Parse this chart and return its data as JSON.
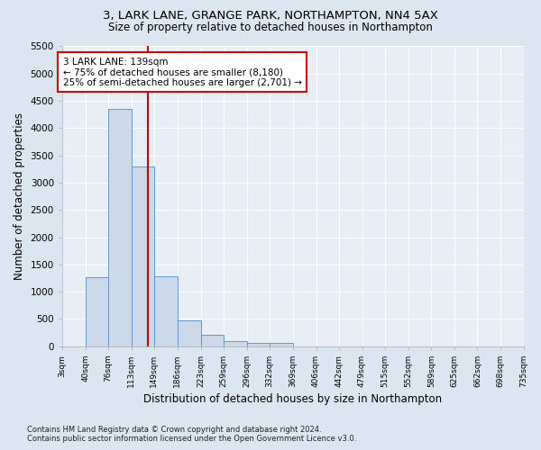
{
  "title1": "3, LARK LANE, GRANGE PARK, NORTHAMPTON, NN4 5AX",
  "title2": "Size of property relative to detached houses in Northampton",
  "xlabel": "Distribution of detached houses by size in Northampton",
  "ylabel": "Number of detached properties",
  "footnote": "Contains HM Land Registry data © Crown copyright and database right 2024.\nContains public sector information licensed under the Open Government Licence v3.0.",
  "bin_edges": [
    3,
    40,
    76,
    113,
    149,
    186,
    223,
    259,
    296,
    332,
    369,
    406,
    442,
    479,
    515,
    552,
    589,
    625,
    662,
    698,
    735
  ],
  "bar_values": [
    0,
    1260,
    4350,
    3300,
    1280,
    480,
    215,
    90,
    60,
    55,
    0,
    0,
    0,
    0,
    0,
    0,
    0,
    0,
    0,
    0
  ],
  "bar_color": "#ccd9ea",
  "bar_edge_color": "#5b9bd5",
  "vline_x": 139,
  "vline_color": "#cc0000",
  "annotation_title": "3 LARK LANE: 139sqm",
  "annotation_line1": "← 75% of detached houses are smaller (8,180)",
  "annotation_line2": "25% of semi-detached houses are larger (2,701) →",
  "annotation_box_color": "#ffffff",
  "annotation_box_edge_color": "#cc0000",
  "ylim": [
    0,
    5500
  ],
  "yticks": [
    0,
    500,
    1000,
    1500,
    2000,
    2500,
    3000,
    3500,
    4000,
    4500,
    5000,
    5500
  ],
  "bg_color": "#dce6f1",
  "plot_bg_color": "#e8eef5",
  "grid_color": "#ffffff",
  "title1_fontsize": 9.5,
  "title2_fontsize": 8.5
}
